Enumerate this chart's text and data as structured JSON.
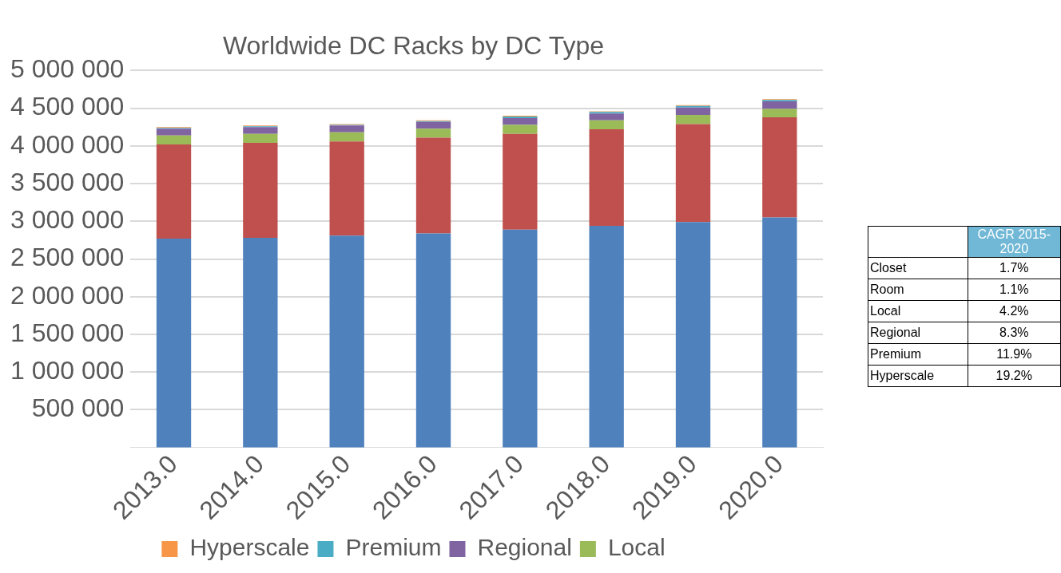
{
  "chart_data": [
    {
      "type": "bar",
      "title": "Worldwide DC Racks by DC Type",
      "stacked": true,
      "categories": [
        "2013.0",
        "2014.0",
        "2015.0",
        "2016.0",
        "2017.0",
        "2018.0",
        "2019.0",
        "2020.0"
      ],
      "series": [
        {
          "color": "#4f81bd",
          "values": [
            2770000,
            2780000,
            2810000,
            2840000,
            2890000,
            2940000,
            2990000,
            3050000
          ]
        },
        {
          "color": "#c0504d",
          "values": [
            1250000,
            1260000,
            1250000,
            1270000,
            1270000,
            1280000,
            1300000,
            1330000
          ]
        },
        {
          "name": "Local",
          "color": "#9bbb59",
          "values": [
            120000,
            120000,
            120000,
            120000,
            120000,
            120000,
            120000,
            110000
          ]
        },
        {
          "name": "Regional",
          "color": "#8064a2",
          "values": [
            90000,
            90000,
            90000,
            90000,
            90000,
            90000,
            100000,
            100000
          ]
        },
        {
          "name": "Premium",
          "color": "#4bacc6",
          "values": [
            10000,
            10000,
            10000,
            10000,
            20000,
            20000,
            20000,
            20000
          ]
        },
        {
          "name": "Hyperscale",
          "color": "#f79646",
          "values": [
            10000,
            10000,
            10000,
            10000,
            10000,
            10000,
            10000,
            10000
          ]
        }
      ],
      "ylim": [
        0,
        5000000
      ],
      "yticks": [
        {
          "value": 500000,
          "label": "500 000"
        },
        {
          "value": 1000000,
          "label": "1 000 000"
        },
        {
          "value": 1500000,
          "label": "1 500 000"
        },
        {
          "value": 2000000,
          "label": "2 000 000"
        },
        {
          "value": 2500000,
          "label": "2 500 000"
        },
        {
          "value": 3000000,
          "label": "3 000 000"
        },
        {
          "value": 3500000,
          "label": "3 500 000"
        },
        {
          "value": 4000000,
          "label": "4 000 000"
        },
        {
          "value": 4500000,
          "label": "4 500 000"
        },
        {
          "value": 5000000,
          "label": "5 000 000"
        }
      ],
      "grid": "y",
      "legend": "bottom"
    },
    {
      "type": "other",
      "title": "CAGR 2015-2020",
      "categories": [
        "Closet",
        "Room",
        "Local",
        "Regional",
        "Premium",
        "Hyperscale"
      ],
      "value_labels": [
        "1.7%",
        "1.1%",
        "4.2%",
        "8.3%",
        "11.9%",
        "19.2%"
      ]
    }
  ]
}
